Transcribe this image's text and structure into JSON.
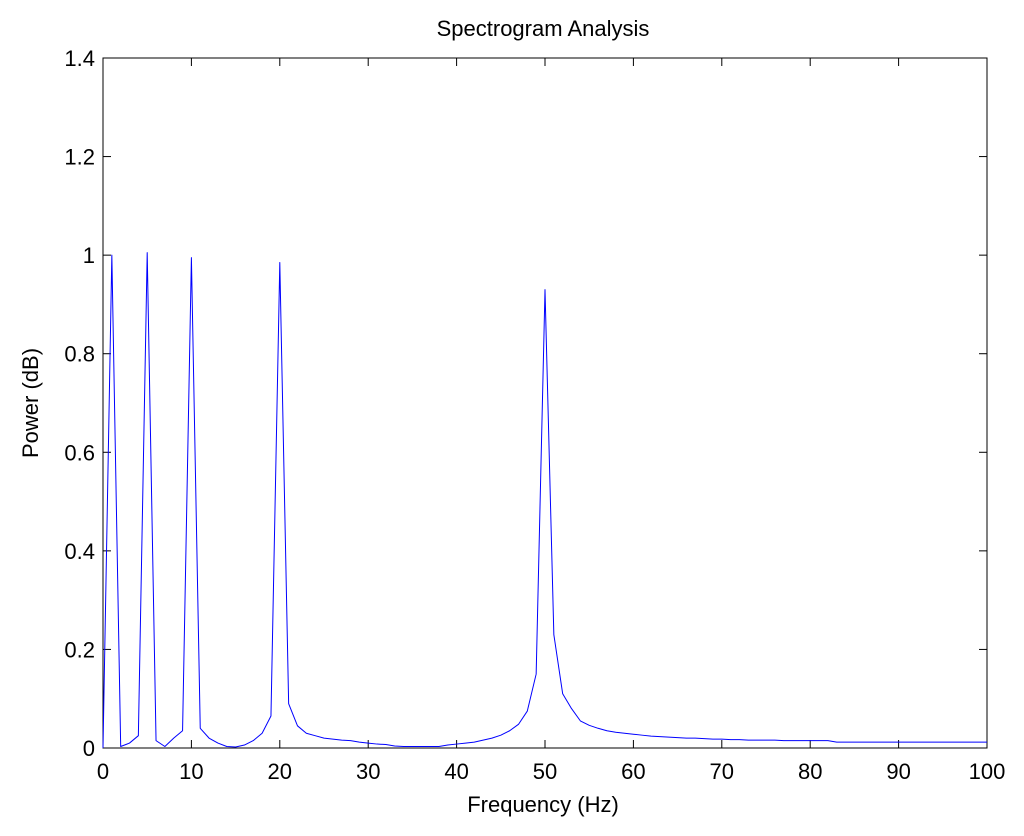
{
  "chart_data": {
    "type": "line",
    "title": "Spectrogram Analysis",
    "xlabel": "Frequency (Hz)",
    "ylabel": "Power (dB)",
    "xlim": [
      0,
      100
    ],
    "ylim": [
      0,
      1.4
    ],
    "xticks": [
      0,
      10,
      20,
      30,
      40,
      50,
      60,
      70,
      80,
      90,
      100
    ],
    "yticks": [
      0,
      0.2,
      0.4,
      0.6,
      0.8,
      1,
      1.2,
      1.4
    ],
    "xtick_labels": [
      "0",
      "10",
      "20",
      "30",
      "40",
      "50",
      "60",
      "70",
      "80",
      "90",
      "100"
    ],
    "ytick_labels": [
      "0",
      "0.2",
      "0.4",
      "0.6",
      "0.8",
      "1",
      "1.2",
      "1.4"
    ],
    "grid": false,
    "series": [
      {
        "color": "#0000ff",
        "x": [
          0,
          1,
          2,
          3,
          4,
          5,
          6,
          7,
          8,
          9,
          10,
          11,
          12,
          13,
          14,
          15,
          16,
          17,
          18,
          19,
          20,
          21,
          22,
          23,
          24,
          25,
          26,
          27,
          28,
          29,
          30,
          31,
          32,
          33,
          34,
          35,
          36,
          37,
          38,
          39,
          40,
          41,
          42,
          43,
          44,
          45,
          46,
          47,
          48,
          49,
          50,
          51,
          52,
          53,
          54,
          55,
          56,
          57,
          58,
          59,
          60,
          61,
          62,
          63,
          64,
          65,
          66,
          67,
          68,
          69,
          70,
          71,
          72,
          73,
          74,
          75,
          76,
          77,
          78,
          79,
          80,
          81,
          82,
          83,
          84,
          85,
          86,
          87,
          88,
          89,
          90,
          91,
          92,
          93,
          94,
          95,
          96,
          97,
          98,
          99,
          100
        ],
        "y": [
          0.0,
          1.0,
          0.003,
          0.01,
          0.025,
          1.005,
          0.015,
          0.003,
          0.02,
          0.035,
          0.995,
          0.04,
          0.02,
          0.01,
          0.003,
          0.002,
          0.006,
          0.015,
          0.03,
          0.065,
          0.985,
          0.09,
          0.045,
          0.03,
          0.025,
          0.02,
          0.018,
          0.016,
          0.015,
          0.012,
          0.01,
          0.008,
          0.007,
          0.004,
          0.003,
          0.003,
          0.003,
          0.003,
          0.003,
          0.006,
          0.008,
          0.01,
          0.012,
          0.016,
          0.02,
          0.026,
          0.035,
          0.048,
          0.075,
          0.15,
          0.93,
          0.23,
          0.11,
          0.08,
          0.055,
          0.046,
          0.04,
          0.035,
          0.032,
          0.03,
          0.028,
          0.026,
          0.024,
          0.023,
          0.022,
          0.021,
          0.02,
          0.02,
          0.019,
          0.018,
          0.018,
          0.017,
          0.017,
          0.016,
          0.016,
          0.016,
          0.016,
          0.015,
          0.015,
          0.015,
          0.015,
          0.015,
          0.015,
          0.012,
          0.012,
          0.012,
          0.012,
          0.012,
          0.012,
          0.012,
          0.012,
          0.012,
          0.012,
          0.012,
          0.012,
          0.012,
          0.012,
          0.012,
          0.012,
          0.012,
          0.012
        ]
      }
    ]
  }
}
